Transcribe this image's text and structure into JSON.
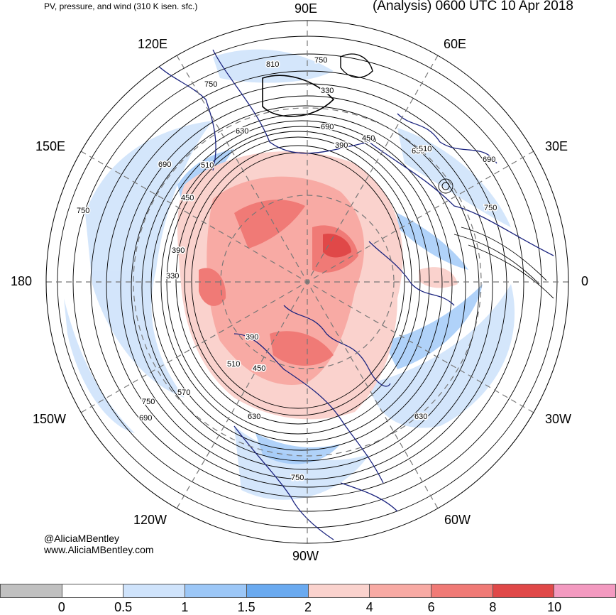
{
  "header": {
    "left_title": "PV, pressure, and wind (310 K isen. sfc.)",
    "right_title": "(Analysis) 0600 UTC 10 Apr 2018"
  },
  "longitude_labels": {
    "n90e": "90E",
    "n60e": "60E",
    "n30e": "30E",
    "n0": "0",
    "n30w": "30W",
    "n60w": "60W",
    "n90w": "90W",
    "n120w": "120W",
    "n150w": "150W",
    "n180": "180",
    "n150e": "150E",
    "n120e": "120E"
  },
  "contour_labels": [
    "750",
    "810",
    "750",
    "690",
    "630",
    "570",
    "510",
    "450",
    "390",
    "330",
    "750",
    "690",
    "630",
    "510",
    "450",
    "390",
    "330",
    "690",
    "750",
    "630",
    "570",
    "510",
    "450",
    "390",
    "630",
    "750",
    "690",
    "750"
  ],
  "credits": {
    "handle": "@AliciaMBentley",
    "website": "www.AliciaMBentley.com"
  },
  "colorbar": {
    "colors": [
      "#c0c0c0",
      "#ffffff",
      "#cfe3fb",
      "#9cc7f7",
      "#6aaaf0",
      "#fad2cd",
      "#f8aaa4",
      "#f07a76",
      "#e04848",
      "#f39ac0"
    ],
    "tick_labels": [
      "0",
      "0.5",
      "1",
      "1.5",
      "2",
      "4",
      "6",
      "8",
      "10"
    ]
  }
}
